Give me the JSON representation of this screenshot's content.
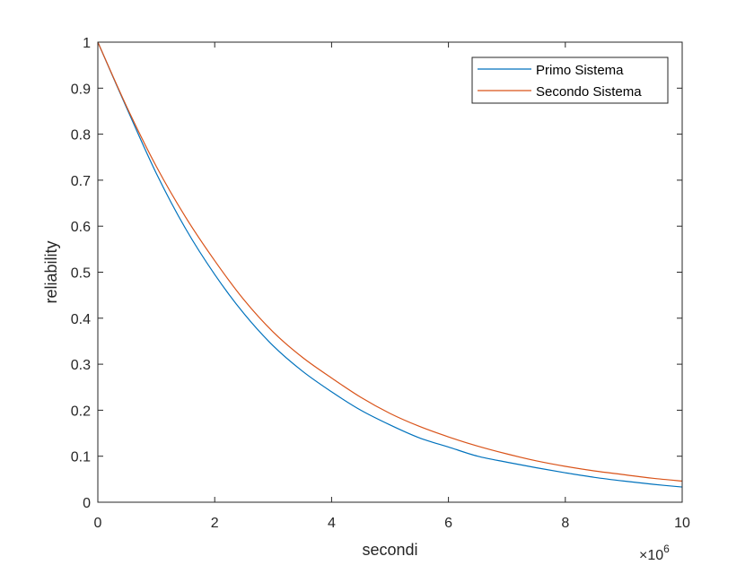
{
  "chart_data": {
    "type": "line",
    "xlabel": "secondi",
    "ylabel": "reliability",
    "x_exponent_label": "×10",
    "x_exponent_power": "6",
    "xlim": [
      0,
      10
    ],
    "ylim": [
      0,
      1
    ],
    "x_scale_factor": 1000000,
    "x_ticks": [
      0,
      2,
      4,
      6,
      8,
      10
    ],
    "x_tick_labels": [
      "0",
      "2",
      "4",
      "6",
      "8",
      "10"
    ],
    "y_ticks": [
      0,
      0.1,
      0.2,
      0.3,
      0.4,
      0.5,
      0.6,
      0.7,
      0.8,
      0.9,
      1
    ],
    "y_tick_labels": [
      "0",
      "0.1",
      "0.2",
      "0.3",
      "0.4",
      "0.5",
      "0.6",
      "0.7",
      "0.8",
      "0.9",
      "1"
    ],
    "grid": false,
    "legend_position": "top-right",
    "x": [
      0,
      0.5,
      1,
      1.5,
      2,
      2.5,
      3,
      3.5,
      4,
      4.5,
      5,
      5.5,
      6,
      6.5,
      7,
      7.5,
      8,
      8.5,
      9,
      9.5,
      10
    ],
    "series": [
      {
        "name": "Primo Sistema",
        "color": "#0072BD",
        "values": [
          1.0,
          0.855,
          0.715,
          0.595,
          0.495,
          0.41,
          0.34,
          0.285,
          0.24,
          0.2,
          0.168,
          0.14,
          0.12,
          0.1,
          0.087,
          0.075,
          0.064,
          0.054,
          0.046,
          0.039,
          0.033
        ]
      },
      {
        "name": "Secondo Sistema",
        "color": "#D95319",
        "values": [
          1.0,
          0.858,
          0.73,
          0.62,
          0.525,
          0.44,
          0.37,
          0.315,
          0.27,
          0.228,
          0.193,
          0.165,
          0.142,
          0.122,
          0.105,
          0.09,
          0.078,
          0.068,
          0.06,
          0.052,
          0.046
        ]
      }
    ]
  }
}
